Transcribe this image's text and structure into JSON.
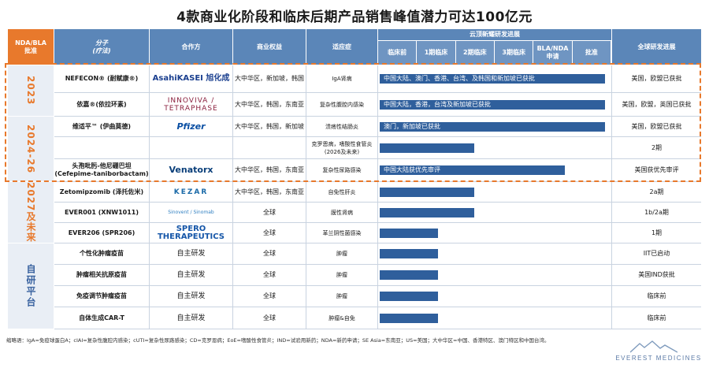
{
  "title": "4款商业化阶段和临床后期产品销售峰值潜力可达100亿元",
  "header": {
    "approval": "NDA/BLA\n批准",
    "molecule": "分子\n(疗法)",
    "partner": "合作方",
    "rights": "商业权益",
    "indication": "适应症",
    "progress_group": "云顶新耀研发进展",
    "stages": [
      "临床前",
      "1期临床",
      "2期临床",
      "3期临床",
      "BLA/NDA\n申请",
      "批准"
    ],
    "global": "全球研发进展"
  },
  "groups": [
    {
      "label": "2023"
    },
    {
      "label": "2024-26"
    },
    {
      "label": "2027及未来"
    },
    {
      "label": "自研平台"
    }
  ],
  "rows": [
    {
      "molecule": "NEFECON® (耐赋康®)",
      "partner": "AsahiKASEI 旭化成",
      "rights": "大中华区，新加坡，韩国",
      "indication": "IgA肾病",
      "progress_text": "中国大陆、澳门、香港、台湾、及韩国和新加坡已获批",
      "progress": 1.0,
      "global": "美国，欧盟已获批"
    },
    {
      "molecule": "依嘉®(依拉环素)",
      "partner": "INNOVIVA / TETRAPHASE",
      "rights": "大中华区，韩国，东南亚",
      "indication": "复杂性腹腔内感染",
      "progress_text": "中国大陆，香港，台湾及新加坡已获批",
      "progress": 1.0,
      "global": "美国，欧盟，英国已获批"
    },
    {
      "molecule": "维适平™ (伊曲莫德)",
      "partner": "Pfizer",
      "rights": "大中华区，韩国，新加坡",
      "indication": "溃疡性结肠炎",
      "progress_text": "澳门，新加坡已获批",
      "progress": 1.0,
      "global": "美国，欧盟已获批"
    },
    {
      "molecule": "",
      "partner": "",
      "rights": "",
      "indication": "克罗恩病，嗜酸性食管炎 (2026及未来)",
      "progress_text": "",
      "progress": 0.42,
      "global": "2期"
    },
    {
      "molecule": "头孢吡肟-他尼硼巴坦 (Cefepime-taniborbactam)",
      "partner": "Venatorx",
      "rights": "大中华区，韩国，东南亚",
      "indication": "复杂性尿路感染",
      "progress_text": "中国大陆获优先审评",
      "progress": 0.82,
      "global": "美国获优先审评"
    },
    {
      "molecule": "Zetomipzomib (泽托佐米)",
      "partner": "KEZAR",
      "rights": "大中华区，韩国，东南亚",
      "indication": "自免性肝炎",
      "progress_text": "",
      "progress": 0.42,
      "global": "2a期"
    },
    {
      "molecule": "EVER001 (XNW1011)",
      "partner": "Sinovent / Sinomab",
      "rights": "全球",
      "indication": "膜性肾病",
      "progress_text": "",
      "progress": 0.42,
      "global": "1b/2a期"
    },
    {
      "molecule": "EVER206 (SPR206)",
      "partner": "SPERO THERAPEUTICS",
      "rights": "全球",
      "indication": "革兰阴性菌感染",
      "progress_text": "",
      "progress": 0.26,
      "global": "1期"
    },
    {
      "molecule": "个性化肿瘤疫苗",
      "partner": "自主研发",
      "rights": "全球",
      "indication": "肿瘤",
      "progress_text": "",
      "progress": 0.26,
      "global": "IIT已启动"
    },
    {
      "molecule": "肿瘤相关抗原疫苗",
      "partner": "自主研发",
      "rights": "全球",
      "indication": "肿瘤",
      "progress_text": "",
      "progress": 0.26,
      "global": "美国IND获批"
    },
    {
      "molecule": "免疫调节肿瘤疫苗",
      "partner": "自主研发",
      "rights": "全球",
      "indication": "肿瘤",
      "progress_text": "",
      "progress": 0.26,
      "global": "临床前"
    },
    {
      "molecule": "自体生成CAR-T",
      "partner": "自主研发",
      "rights": "全球",
      "indication": "肿瘤&自免",
      "progress_text": "",
      "progress": 0.26,
      "global": "临床前"
    }
  ],
  "footnote": "缩略语：IgA=免疫球蛋白A；cIAI=复杂性腹腔内感染；cUTI=复杂性尿路感染；CD=克罗恩病；EoE=嗜酸性食管炎；IND=试验用新药；NDA=新药申请；SE Asia=东南亚；US=美国；大中华区=中国、香港特区、澳门特区和中国台湾。",
  "brand": "EVEREST MEDICINES",
  "colors": {
    "accent": "#e8792c",
    "header": "#5b86b8",
    "arrow": "#2f5f9c"
  }
}
